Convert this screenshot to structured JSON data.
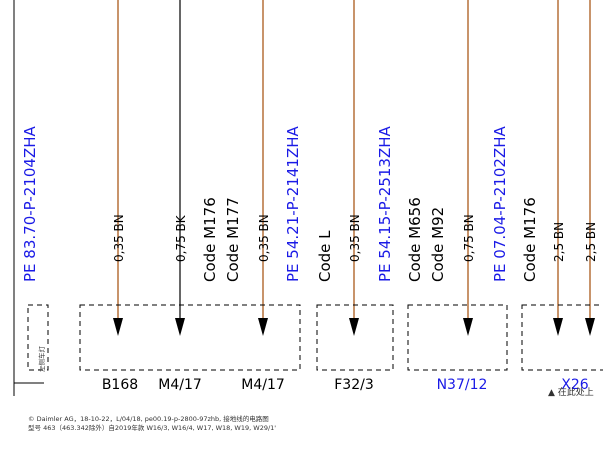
{
  "left_reference": "PE 83.70-P-2104ZHA",
  "left_note": "左侧车灯",
  "wires": [
    {
      "label": "0,35 BN"
    },
    {
      "label": "0,75 BK"
    },
    {
      "label": "0,35 BN"
    },
    {
      "label": "0,35 BN"
    },
    {
      "label": "0,75 BN"
    },
    {
      "label": "2,5 BN"
    },
    {
      "label": "2,5 BN"
    }
  ],
  "codes": [
    "Code M176",
    "Code M177",
    "PE 54.21-P-2141ZHA",
    "Code L",
    "PE 54.15-P-2513ZHA",
    "Code M656",
    "Code M92",
    "PE 07.04-P-2102ZHA",
    "Code M176"
  ],
  "components": [
    "B168",
    "M4/17",
    "M4/17",
    "F32/3",
    "N37/12",
    "X26"
  ],
  "continuation": "▲ 在此处上",
  "footer": {
    "line1": "© Daimler AG，18-10-22，L/04/18, pe00.19-p-2800-97zhb, 接地线的电路图",
    "line2": "型号 463（463.342除外）自2019年款 W16/3, W16/4, W17, W18, W19, W29/1'"
  }
}
